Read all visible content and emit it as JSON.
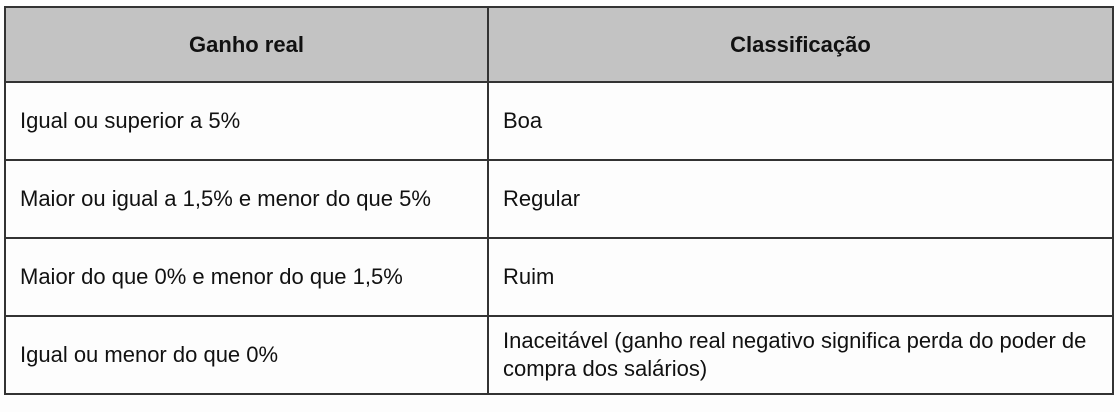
{
  "table": {
    "headers": [
      "Ganho real",
      "Classificação"
    ],
    "rows": [
      [
        "Igual ou superior a 5%",
        "Boa"
      ],
      [
        "Maior ou igual a 1,5% e menor do que 5%",
        "Regular"
      ],
      [
        "Maior do que 0% e menor do que 1,5%",
        "Ruim"
      ],
      [
        "Igual ou menor do que 0%",
        "Inaceitável (ganho real negativo significa perda do poder de compra dos salários)"
      ]
    ],
    "header_bg": "#c3c3c3"
  }
}
